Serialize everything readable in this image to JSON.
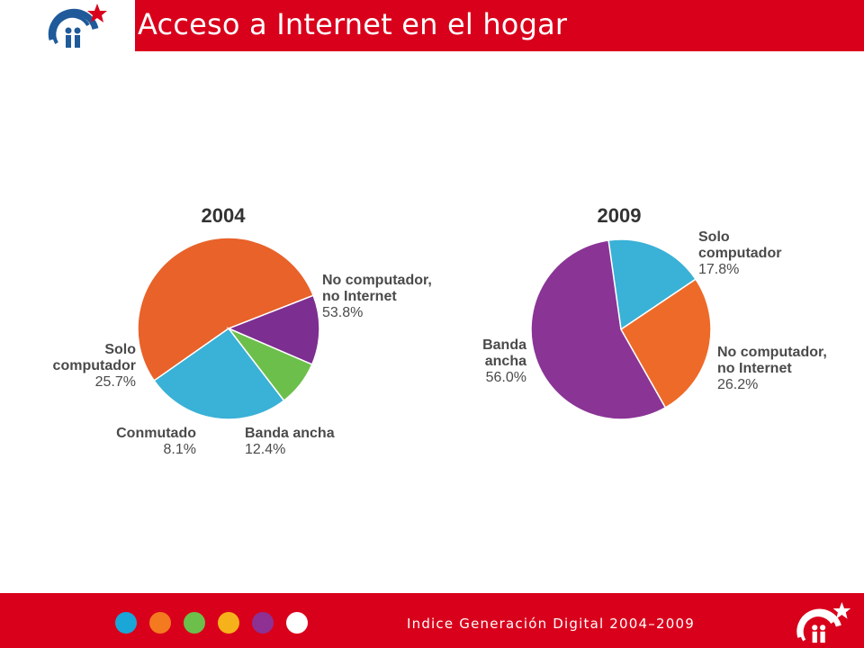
{
  "header": {
    "title": "Acceso a Internet en el hogar"
  },
  "footer": {
    "text": "Indice Generación Digital 2004–2009",
    "dots": [
      "#1aa6d6",
      "#f47a20",
      "#6cbf4b",
      "#f6b21a",
      "#8e3193",
      "#ffffff"
    ]
  },
  "colors": {
    "accent": "#d9001b"
  },
  "icons": {
    "logo": "people-star-logo"
  },
  "chart_data": [
    {
      "type": "pie",
      "title": "2004",
      "slices": [
        {
          "label": [
            "No computador,",
            "no Internet"
          ],
          "value": 53.8,
          "display": "53.8%",
          "color": "#e8622a"
        },
        {
          "label": [
            "Banda ancha"
          ],
          "value": 12.4,
          "display": "12.4%",
          "color": "#7d2e91"
        },
        {
          "label": [
            "Conmutado"
          ],
          "value": 8.1,
          "display": "8.1%",
          "color": "#6cbf4b"
        },
        {
          "label": [
            "Solo",
            "computador"
          ],
          "value": 25.7,
          "display": "25.7%",
          "color": "#3ab1d6"
        }
      ]
    },
    {
      "type": "pie",
      "title": "2009",
      "slices": [
        {
          "label": [
            "Solo",
            "computador"
          ],
          "value": 17.8,
          "display": "17.8%",
          "color": "#3ab1d6"
        },
        {
          "label": [
            "No computador,",
            "no Internet"
          ],
          "value": 26.2,
          "display": "26.2%",
          "color": "#ee6a28"
        },
        {
          "label": [
            "Banda",
            "ancha"
          ],
          "value": 56.0,
          "display": "56.0%",
          "color": "#8a3496"
        }
      ]
    }
  ]
}
